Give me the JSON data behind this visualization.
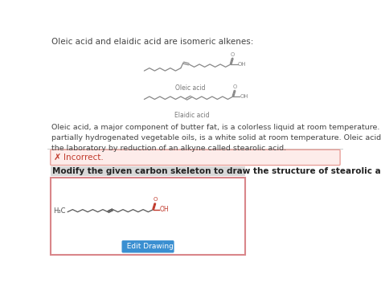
{
  "bg_color": "#ffffff",
  "title_text": "Oleic acid and elaidic acid are isomeric alkenes:",
  "title_fontsize": 7.5,
  "title_color": "#444444",
  "oleic_label": "Oleic acid",
  "elaidic_label": "Elaidic acid",
  "paragraph_text": "Oleic acid, a major component of butter fat, is a colorless liquid at room temperature. Elaidic acid, a major component of\npartially hydrogenated vegetable oils, is a white solid at room temperature. Oleic acid and elaidic acid can both be prepared in\nthe laboratory by reduction of an alkyne called stearolic acid.",
  "para_fontsize": 6.8,
  "incorrect_text": "Incorrect.",
  "incorrect_color": "#c0392b",
  "incorrect_bg": "#fdecea",
  "incorrect_border": "#e8a09a",
  "modify_text": "Modify the given carbon skeleton to draw the structure of stearolic acid:",
  "modify_fontsize": 7.5,
  "modify_bg": "#d8d8d8",
  "button_text": "  Edit Drawing",
  "button_color": "#3a8fd1",
  "button_text_color": "#ffffff",
  "drawing_border_color": "#d9868a",
  "drawing_bg": "#ffffff",
  "structure_color": "#888888",
  "label_color": "#777777",
  "h3c_color": "#555555",
  "oh_color_red": "#c0392b",
  "o_color_red": "#c0392b",
  "bond_color_dark": "#555555"
}
